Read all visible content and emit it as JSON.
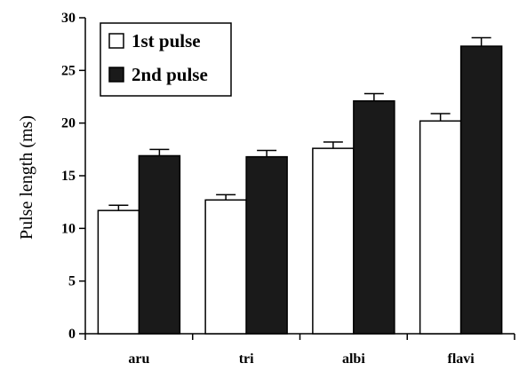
{
  "chart_data": {
    "type": "bar",
    "categories": [
      "aru",
      "tri",
      "albi",
      "flavi"
    ],
    "series": [
      {
        "name": "1st pulse",
        "values": [
          11.7,
          12.7,
          17.6,
          20.2
        ],
        "errors": [
          0.5,
          0.5,
          0.6,
          0.7
        ],
        "color": "#ffffff"
      },
      {
        "name": "2nd pulse",
        "values": [
          16.9,
          16.8,
          22.1,
          27.3
        ],
        "errors": [
          0.6,
          0.6,
          0.7,
          0.8
        ],
        "color": "#1a1a1a"
      }
    ],
    "title": "",
    "xlabel": "",
    "ylabel": "Pulse length (ms)",
    "ylim": [
      0,
      30
    ],
    "yticks": [
      0,
      5,
      10,
      15,
      20,
      25,
      30
    ],
    "legend_position": "top-left",
    "grid": false
  }
}
